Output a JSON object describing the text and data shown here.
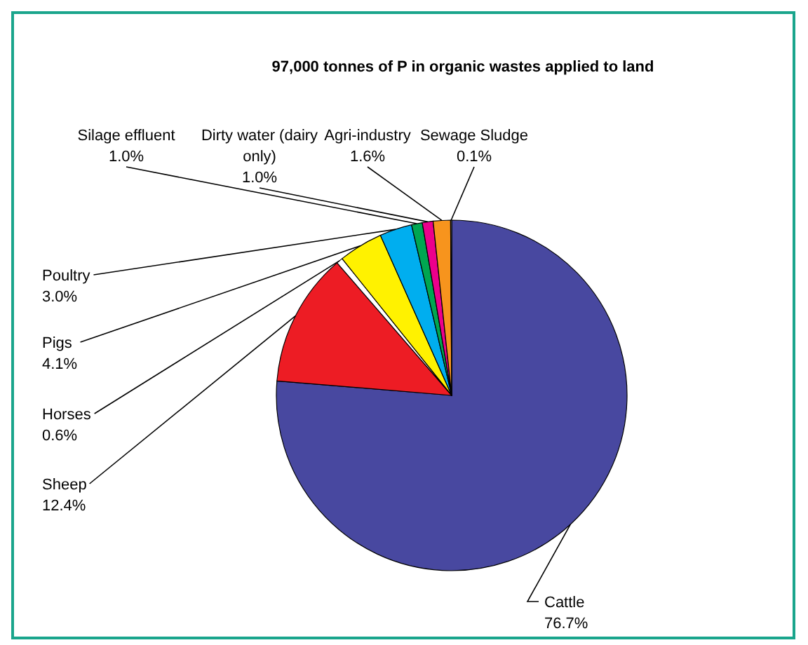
{
  "chart_data": {
    "type": "pie",
    "title": "97,000 tonnes of P in organic wastes applied to land",
    "categories": [
      "Cattle",
      "Sheep",
      "Horses",
      "Pigs",
      "Poultry",
      "Silage effluent",
      "Dirty water (dairy only)",
      "Agri-industry",
      "Sewage Sludge"
    ],
    "values": [
      76.7,
      12.4,
      0.6,
      4.1,
      3.0,
      1.0,
      1.0,
      1.6,
      0.1
    ],
    "value_labels": [
      "76.7%",
      "12.4%",
      "0.6%",
      "4.1%",
      "3.0%",
      "1.0%",
      "1.0%",
      "1.6%",
      "0.1%"
    ],
    "colors": [
      "#4848a0",
      "#ed1c24",
      "#ffffff",
      "#fff200",
      "#00aeef",
      "#00a651",
      "#ec008c",
      "#f7941d",
      "#b0b0b0"
    ]
  }
}
